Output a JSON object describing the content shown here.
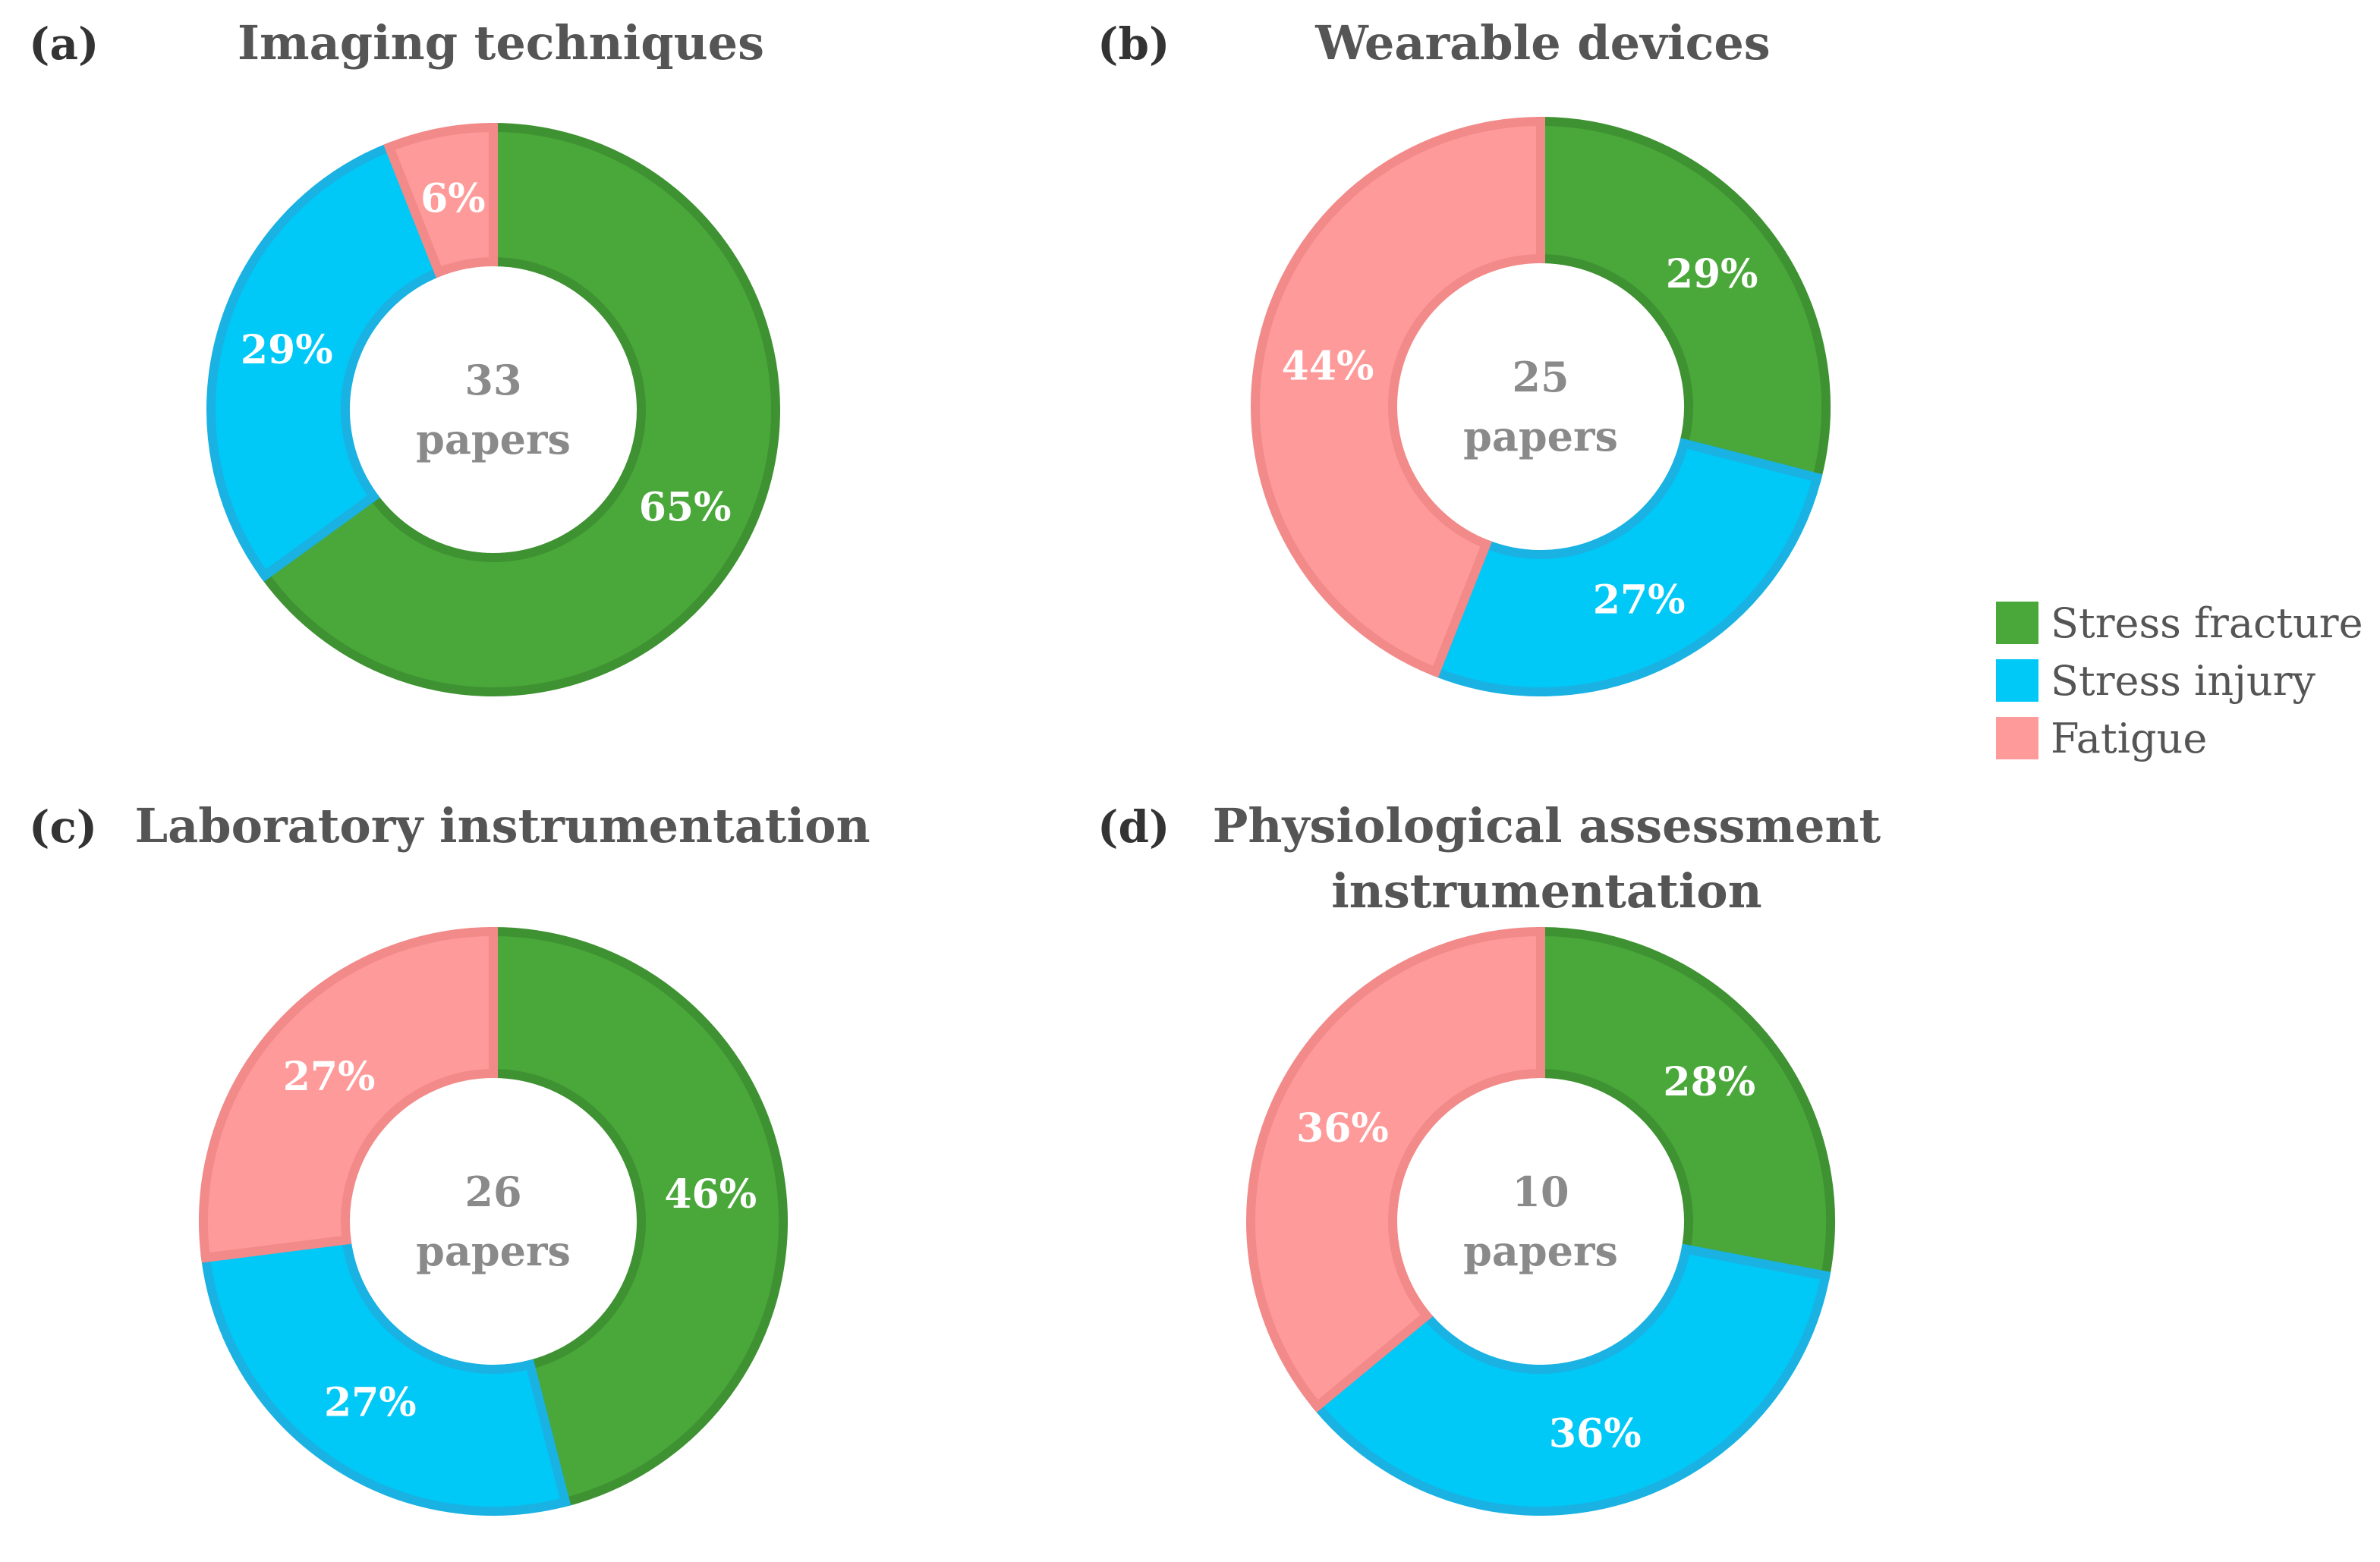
{
  "chart_data": [
    {
      "type": "pie",
      "panel": "(a)",
      "title": [
        "Imaging techniques"
      ],
      "center": [
        "33",
        "papers"
      ],
      "categories": [
        "Stress fracture",
        "Stress injury",
        "Fatigue"
      ],
      "values": [
        65,
        29,
        6
      ],
      "labels": [
        "65%",
        "29%",
        "6%"
      ]
    },
    {
      "type": "pie",
      "panel": "(b)",
      "title": [
        "Wearable devices"
      ],
      "center": [
        "25",
        "papers"
      ],
      "categories": [
        "Stress fracture",
        "Stress injury",
        "Fatigue"
      ],
      "values": [
        29,
        27,
        44
      ],
      "labels": [
        "29%",
        "27%",
        "44%"
      ]
    },
    {
      "type": "pie",
      "panel": "(c)",
      "title": [
        "Laboratory instrumentation"
      ],
      "center": [
        "26",
        "papers"
      ],
      "categories": [
        "Stress fracture",
        "Stress injury",
        "Fatigue"
      ],
      "values": [
        46,
        27,
        27
      ],
      "labels": [
        "46%",
        "27%",
        "27%"
      ]
    },
    {
      "type": "pie",
      "panel": "(d)",
      "title": [
        "Physiological assessment",
        "instrumentation"
      ],
      "center": [
        "10",
        "papers"
      ],
      "categories": [
        "Stress fracture",
        "Stress injury",
        "Fatigue"
      ],
      "values": [
        28,
        36,
        36
      ],
      "labels": [
        "28%",
        "36%",
        "36%"
      ]
    }
  ],
  "legend": {
    "items": [
      {
        "label": "Stress fracture",
        "color": "#4aa83a"
      },
      {
        "label": "Stress injury",
        "color": "#00c9f7"
      },
      {
        "label": "Fatigue",
        "color": "#ff9a9a"
      }
    ]
  },
  "colors": {
    "stress_fracture": "#4aa83a",
    "stress_fracture_edge": "#3e9232",
    "stress_injury": "#00c9f7",
    "stress_injury_edge": "#19b2e3",
    "fatigue": "#ff9a9a",
    "fatigue_edge": "#f28a8a"
  }
}
